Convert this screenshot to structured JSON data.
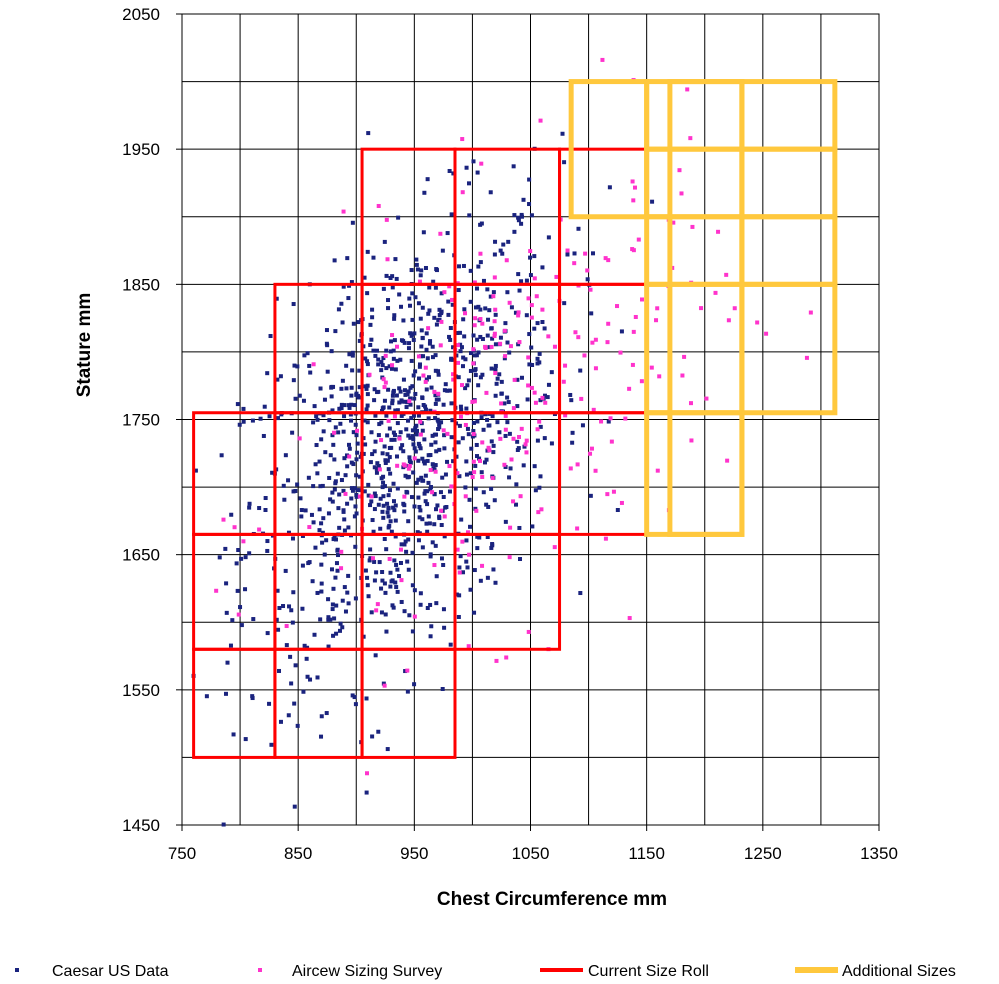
{
  "chart_data": {
    "type": "scatter",
    "title": "",
    "xlabel": "Chest Circumference mm",
    "ylabel": "Stature mm",
    "xlim": [
      750,
      1350
    ],
    "ylim": [
      1450,
      2050
    ],
    "xticks": [
      750,
      850,
      950,
      1050,
      1150,
      1250,
      1350
    ],
    "yticks": [
      1450,
      1550,
      1650,
      1750,
      1850,
      1950,
      2050
    ],
    "x_tick_labels": [
      "750",
      "850",
      "950",
      "1050",
      "1150",
      "1250",
      "1350"
    ],
    "y_tick_labels": [
      "1450",
      "1550",
      "1650",
      "1750",
      "1850",
      "1950",
      "2050"
    ],
    "grid": true,
    "grid_x_step": 50,
    "grid_y_step": 50,
    "legend_position": "bottom",
    "series": [
      {
        "name": "Caesar US Data",
        "kind": "points",
        "color": "#1a237e",
        "x_mean": 940,
        "x_sd": 68,
        "y_mean": 1730,
        "y_sd": 85,
        "correlation": 0.45,
        "count": 1100
      },
      {
        "name": "Aircew Sizing Survey",
        "kind": "points",
        "color": "#ff33cc",
        "x_mean": 1030,
        "x_sd": 95,
        "y_mean": 1760,
        "y_sd": 85,
        "correlation": 0.4,
        "count": 280
      },
      {
        "name": "Current Size Roll",
        "kind": "rectangles",
        "color": "#ff0000",
        "rects": [
          {
            "x": [
              760,
              830
            ],
            "y": [
              1500,
              1580
            ]
          },
          {
            "x": [
              760,
              830
            ],
            "y": [
              1580,
              1665
            ]
          },
          {
            "x": [
              760,
              830
            ],
            "y": [
              1665,
              1755
            ]
          },
          {
            "x": [
              830,
              905
            ],
            "y": [
              1500,
              1580
            ]
          },
          {
            "x": [
              830,
              905
            ],
            "y": [
              1580,
              1665
            ]
          },
          {
            "x": [
              830,
              905
            ],
            "y": [
              1665,
              1755
            ]
          },
          {
            "x": [
              830,
              905
            ],
            "y": [
              1755,
              1850
            ]
          },
          {
            "x": [
              905,
              985
            ],
            "y": [
              1500,
              1580
            ]
          },
          {
            "x": [
              905,
              985
            ],
            "y": [
              1580,
              1665
            ]
          },
          {
            "x": [
              905,
              985
            ],
            "y": [
              1665,
              1755
            ]
          },
          {
            "x": [
              905,
              985
            ],
            "y": [
              1755,
              1850
            ]
          },
          {
            "x": [
              905,
              985
            ],
            "y": [
              1850,
              1950
            ]
          },
          {
            "x": [
              985,
              1075
            ],
            "y": [
              1580,
              1665
            ]
          },
          {
            "x": [
              985,
              1075
            ],
            "y": [
              1665,
              1755
            ]
          },
          {
            "x": [
              985,
              1075
            ],
            "y": [
              1755,
              1850
            ]
          },
          {
            "x": [
              985,
              1075
            ],
            "y": [
              1850,
              1950
            ]
          },
          {
            "x": [
              1075,
              1170
            ],
            "y": [
              1665,
              1755
            ]
          },
          {
            "x": [
              1075,
              1170
            ],
            "y": [
              1755,
              1850
            ]
          },
          {
            "x": [
              1075,
              1170
            ],
            "y": [
              1850,
              1950
            ]
          }
        ]
      },
      {
        "name": "Additional Sizes",
        "kind": "rectangles",
        "color": "#ffc83d",
        "rects": [
          {
            "x": [
              1150,
              1232
            ],
            "y": [
              1665,
              1755
            ]
          },
          {
            "x": [
              1150,
              1232
            ],
            "y": [
              1755,
              1850
            ]
          },
          {
            "x": [
              1232,
              1312
            ],
            "y": [
              1755,
              1850
            ]
          },
          {
            "x": [
              1150,
              1232
            ],
            "y": [
              1850,
              1900
            ]
          },
          {
            "x": [
              1232,
              1312
            ],
            "y": [
              1850,
              1900
            ]
          },
          {
            "x": [
              1150,
              1232
            ],
            "y": [
              1900,
              1950
            ]
          },
          {
            "x": [
              1232,
              1312
            ],
            "y": [
              1900,
              1950
            ]
          },
          {
            "x": [
              1085,
              1150
            ],
            "y": [
              1900,
              2000
            ]
          },
          {
            "x": [
              1150,
              1232
            ],
            "y": [
              1950,
              2000
            ]
          },
          {
            "x": [
              1232,
              1312
            ],
            "y": [
              1950,
              2000
            ]
          },
          {
            "x": [
              1170,
              1232
            ],
            "y": [
              1665,
              2000
            ]
          }
        ]
      }
    ]
  }
}
